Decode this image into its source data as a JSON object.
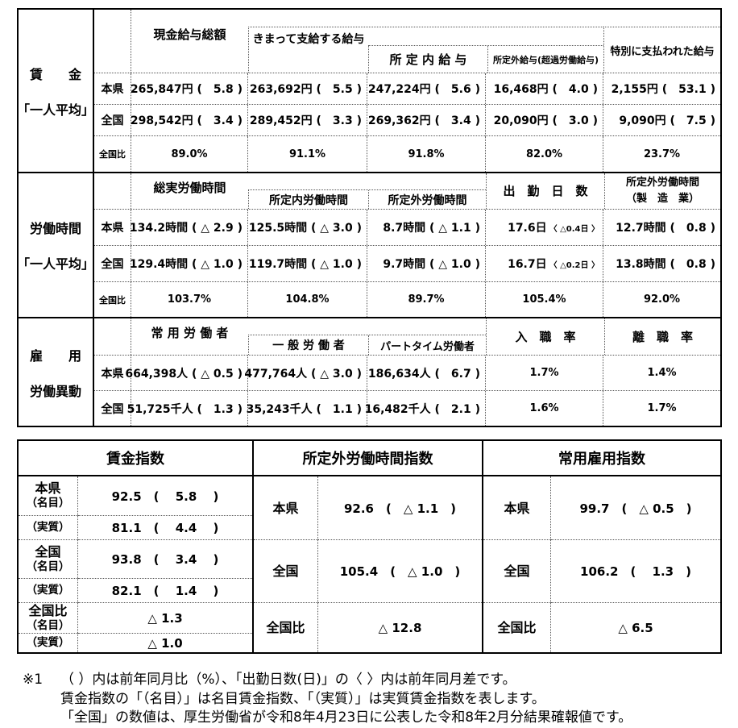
{
  "t1s1": {
    "label1": "賃　　金",
    "label2": "「一人平均」",
    "h1": "現金給与総額",
    "h2": "きまって支給する給与",
    "h3": "所 定 内 給 与",
    "h4": "所定外給与(超過労働給与)",
    "h5": "特別に支払われた給与",
    "r1l": "本県",
    "r1": [
      "265,847円 (　5.8 )",
      "263,692円 (　5.5 )",
      "247,224円 (　5.6 )",
      "16,468円 (　4.0 )",
      "2,155円 (　53.1 )"
    ],
    "r2l": "全国",
    "r2": [
      "298,542円 (　3.4 )",
      "289,452円 (　3.3 )",
      "269,362円 (　3.4 )",
      "20,090円 (　3.0 )",
      "9,090円 (　7.5 )"
    ],
    "r3l": "全国比",
    "r3": [
      "89.0%",
      "91.1%",
      "91.8%",
      "82.0%",
      "23.7%"
    ]
  },
  "t1s2": {
    "label1": "労働時間",
    "label2": "「一人平均」",
    "h1": "総実労働時間",
    "h2": "所定内労働時間",
    "h3": "所定外労働時間",
    "h4": "出　勤　日　数",
    "h5a": "所定外労働時間",
    "h5b": "（製　造　業）",
    "r1l": "本県",
    "r1": [
      "134.2時間 ( △ 2.9 )",
      "125.5時間 ( △ 3.0 )",
      "8.7時間 ( △ 1.1 )"
    ],
    "r1d": "17.6日",
    "r1dn": "〈 △0.4日 〉",
    "r1e": "12.7時間 (　0.8 )",
    "r2l": "全国",
    "r2": [
      "129.4時間 ( △ 1.0 )",
      "119.7時間 ( △ 1.0 )",
      "9.7時間 ( △ 1.0 )"
    ],
    "r2d": "16.7日",
    "r2dn": "〈 △0.2日 〉",
    "r2e": "13.8時間 (　0.8 )",
    "r3l": "全国比",
    "r3": [
      "103.7%",
      "104.8%",
      "89.7%",
      "105.4%",
      "92.0%"
    ]
  },
  "t1s3": {
    "label1": "雇　　用",
    "label2": "労働異動",
    "h1": "常 用 労 働 者",
    "h2": "一 般 労 働 者",
    "h3": "パートタイム労働者",
    "h4": "入　職　率",
    "h5": "離　職　率",
    "r1l": "本県",
    "r1": [
      "664,398人 ( △ 0.5 )",
      "477,764人 ( △ 3.0 )",
      "186,634人 (　6.7 )",
      "1.7%",
      "1.4%"
    ],
    "r2l": "全国",
    "r2": [
      "51,725千人 (　1.3 )",
      "35,243千人 (　1.1 )",
      "16,482千人 (　2.1 )",
      "1.6%",
      "1.7%"
    ]
  },
  "t2": {
    "h1": "賃金指数",
    "h2": "所定外労働時間指数",
    "h3": "常用雇用指数",
    "g1": {
      "r1l1": "本県",
      "r1l2": "（名目）",
      "r1v": "92.5　(　 5.8　 )",
      "r2l": "（実質）",
      "r2v": "81.1　(　 4.4　 )",
      "r3l1": "全国",
      "r3l2": "（名目）",
      "r3v": "93.8　(　 3.4　 )",
      "r4l": "（実質）",
      "r4v": "82.1　(　 1.4　 )",
      "r5l1": "全国比",
      "r5l2": "（名目）",
      "r5v": "△ 1.3",
      "r6l": "（実質）",
      "r6v": "△ 1.0"
    },
    "g2": {
      "r1l": "本県",
      "r1v": "92.6　(　△ 1.1　)",
      "r2l": "全国",
      "r2v": "105.4　(　△ 1.0　)",
      "r3l": "全国比",
      "r3v": "△ 12.8"
    },
    "g3": {
      "r1l": "本県",
      "r1v": "99.7　(　△ 0.5　)",
      "r2l": "全国",
      "r2v": "106.2　(　 1.3　)",
      "r3l": "全国比",
      "r3v": "△ 6.5"
    }
  },
  "footnote": {
    "marker": "※1",
    "line1": "（ ）内は前年同月比（%）、「出勤日数(日)」の〈 〉内は前年同月差です。",
    "line2": "賃金指数の「（名目）」は名目賃金指数、「（実質）」は実質賃金指数を表します。",
    "line3": "「全国」の数値は、厚生労働省が令和8年4月23日に公表した令和8年2月分結果確報値です。"
  }
}
